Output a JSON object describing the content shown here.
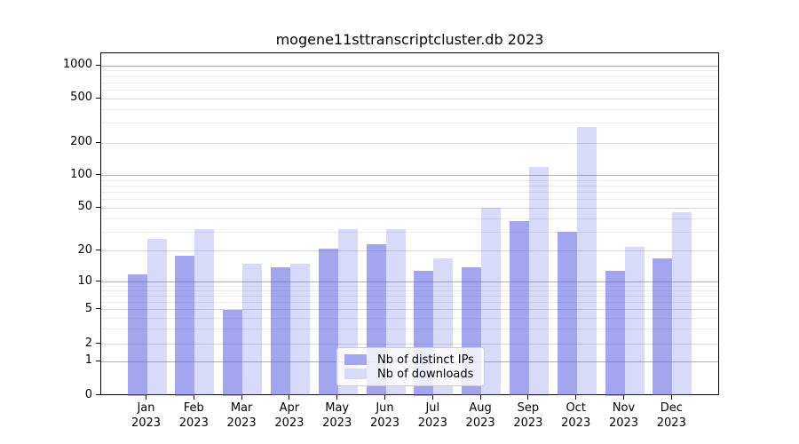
{
  "title": "mogene11sttranscriptcluster.db 2023",
  "chart_data": {
    "type": "bar",
    "title": "mogene11sttranscriptcluster.db 2023",
    "categories": [
      "Jan 2023",
      "Feb 2023",
      "Mar 2023",
      "Apr 2023",
      "May 2023",
      "Jun 2023",
      "Jul 2023",
      "Aug 2023",
      "Sep 2023",
      "Oct 2023",
      "Nov 2023",
      "Dec 2023"
    ],
    "series": [
      {
        "name": "Nb of distinct IPs",
        "key": "distinct-ips",
        "fill": "rgba(98,98,228,0.58)",
        "swatch_color": "#a5a5f0",
        "values": [
          12,
          18,
          5,
          14,
          21,
          23,
          13,
          14,
          38,
          30,
          13,
          17
        ]
      },
      {
        "name": "Nb of downloads",
        "key": "downloads",
        "fill": "rgba(98,98,228,0.24)",
        "swatch_color": "#d9d9f8",
        "values": [
          26,
          32,
          15,
          15,
          32,
          32,
          17,
          50,
          120,
          280,
          22,
          46
        ]
      }
    ],
    "yticks": [
      0,
      1,
      2,
      5,
      10,
      20,
      50,
      100,
      200,
      500,
      1000
    ],
    "ylim": [
      0,
      1400
    ],
    "yscale": "log-like",
    "grid": true,
    "legend_position": "bottom-center"
  }
}
